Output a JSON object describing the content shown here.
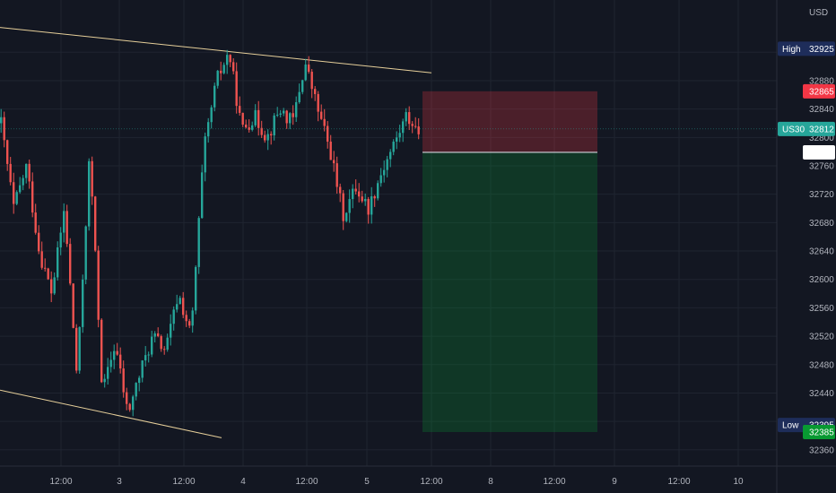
{
  "chart_data": {
    "type": "candlestick",
    "title": "",
    "currency": "USD",
    "symbol": "US30",
    "x_tick_labels": [
      "12:00",
      "3",
      "12:00",
      "4",
      "12:00",
      "5",
      "12:00",
      "8",
      "12:00",
      "9",
      "12:00",
      "10"
    ],
    "y_ticks": [
      32360,
      32400,
      32440,
      32480,
      32520,
      32560,
      32600,
      32640,
      32680,
      32720,
      32760,
      32800,
      32840,
      32880,
      32920
    ],
    "y_tick_labels": [
      "32360",
      "32440",
      "32480",
      "32520",
      "32560",
      "32600",
      "32640",
      "32680",
      "32720",
      "32760",
      "32800",
      "32840",
      "32880"
    ],
    "ylim": [
      32350,
      32950
    ],
    "grid": true,
    "price_tags": {
      "high": {
        "label": "High",
        "value": "32925"
      },
      "stop": {
        "value": "32865"
      },
      "last": {
        "label": "US30",
        "value": "32812"
      },
      "entry": {
        "value": "32779"
      },
      "low": {
        "label": "Low",
        "value": "32395"
      },
      "target": {
        "value": "32385"
      }
    },
    "position": {
      "side": "short",
      "entry": 32779,
      "stop": 32865,
      "target": 32385
    },
    "trendlines": [
      {
        "from": {
          "x_label": "start",
          "y": 32955
        },
        "to": {
          "x_label": "12:00 (5)",
          "y": 32891
        }
      },
      {
        "from": {
          "x_label": "start",
          "y": 32444
        },
        "to": {
          "x_label": "4",
          "y": 32377
        }
      }
    ],
    "candle_path": [
      32820,
      32700,
      32760,
      32640,
      32580,
      32700,
      32460,
      32780,
      32440,
      32510,
      32410,
      32470,
      32520,
      32500,
      32580,
      32520,
      32780,
      32880,
      32920,
      32810,
      32830,
      32800,
      32840,
      32820,
      32905,
      32840,
      32780,
      32690,
      32730,
      32700,
      32750,
      32790,
      32830,
      32808
    ]
  },
  "colors": {
    "background": "#131722",
    "grid": "#1f2430",
    "up": "#26a69a",
    "down": "#ef5350",
    "trendline": "#e6cf9a",
    "risk_zone": "rgba(242,54,69,0.25)",
    "reward_zone": "rgba(8,153,50,0.25)",
    "high_tag": "#1e2d5a",
    "stop_tag": "#f23645",
    "last_tag": "#26a69a",
    "entry_tag": "#ffffff",
    "low_tag": "#1e2d5a",
    "target_tag": "#089932"
  }
}
